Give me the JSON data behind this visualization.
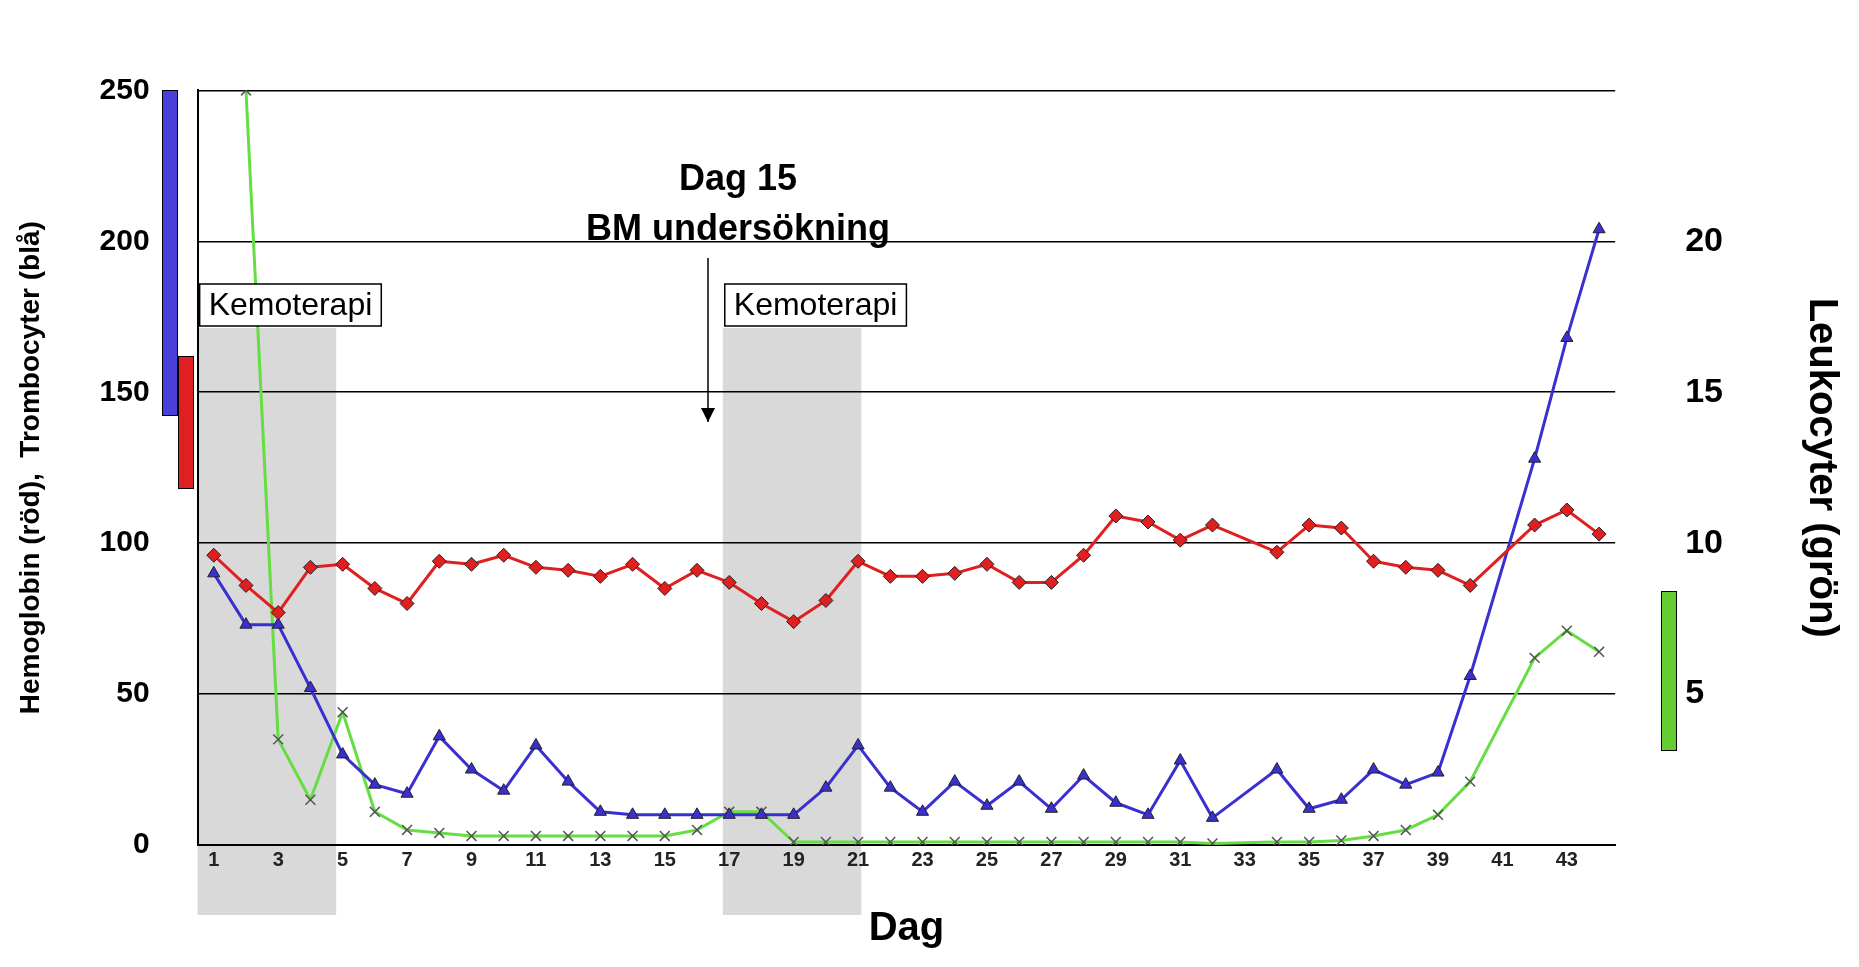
{
  "chart_data": {
    "type": "line",
    "xlabel": "Dag",
    "ylabel": "Hemoglobin (röd),  Trombocyter (blå)",
    "y2label": "Leukocyter (grön)",
    "x": [
      1,
      2,
      3,
      4,
      5,
      6,
      7,
      8,
      9,
      10,
      11,
      12,
      13,
      14,
      15,
      16,
      17,
      18,
      19,
      20,
      21,
      22,
      23,
      24,
      25,
      26,
      27,
      28,
      29,
      30,
      31,
      32,
      33,
      34,
      35,
      36,
      37,
      38,
      39,
      40,
      41,
      42,
      43,
      44
    ],
    "xlim": [
      0.5,
      44.5
    ],
    "xticks": [
      1,
      3,
      5,
      7,
      9,
      11,
      13,
      15,
      17,
      19,
      21,
      23,
      25,
      27,
      29,
      31,
      33,
      35,
      37,
      39,
      41,
      43
    ],
    "ylim": [
      0,
      250
    ],
    "yticks": [
      0,
      50,
      100,
      150,
      200,
      250
    ],
    "y2lim": [
      0,
      25
    ],
    "y2ticks": [
      5,
      10,
      15,
      20
    ],
    "grid": "y",
    "legend": false,
    "line_style": "solid",
    "series": [
      {
        "color": "#e02020",
        "marker": "diamond",
        "values": [
          96,
          86,
          77,
          92,
          93,
          85,
          80,
          94,
          93,
          96,
          92,
          91,
          89,
          93,
          85,
          91,
          87,
          80,
          74,
          81,
          94,
          89,
          89,
          90,
          93,
          87,
          87,
          96,
          109,
          107,
          101,
          106,
          null,
          97,
          106,
          105,
          94,
          92,
          91,
          86,
          null,
          106,
          111,
          103
        ]
      },
      {
        "color": "#3a2fd0",
        "marker": "triangle",
        "values": [
          90,
          73,
          73,
          52,
          30,
          20,
          17,
          36,
          25,
          18,
          33,
          21,
          11,
          10,
          10,
          10,
          10,
          10,
          10,
          19,
          33,
          19,
          11,
          21,
          13,
          21,
          12,
          23,
          14,
          10,
          28,
          9,
          null,
          25,
          12,
          15,
          25,
          20,
          24,
          56,
          null,
          128,
          168,
          204
        ]
      },
      {
        "color": "#66dd44",
        "marker": "cross",
        "axis": "y2",
        "values": [
          null,
          25,
          3.5,
          1.5,
          4.4,
          1.1,
          0.5,
          0.4,
          0.3,
          0.3,
          0.3,
          0.3,
          0.3,
          0.3,
          0.3,
          0.5,
          1.1,
          1.1,
          0.1,
          0.1,
          0.1,
          0.1,
          0.1,
          0.1,
          0.1,
          0.1,
          0.1,
          0.1,
          0.1,
          0.1,
          0.1,
          0.05,
          null,
          0.1,
          0.1,
          0.15,
          0.3,
          0.5,
          1.0,
          2.1,
          null,
          6.2,
          7.1,
          6.4
        ]
      }
    ],
    "bands": [
      {
        "axis": "x",
        "from": 0.5,
        "to": 4.8,
        "label": "Kemoterapi",
        "color": "#d9d9d9"
      },
      {
        "axis": "x",
        "from": 16.8,
        "to": 21.1,
        "label": "Kemoterapi",
        "color": "#d9d9d9"
      }
    ],
    "annotations": [
      "Dag 15\nBM undersökning"
    ]
  }
}
